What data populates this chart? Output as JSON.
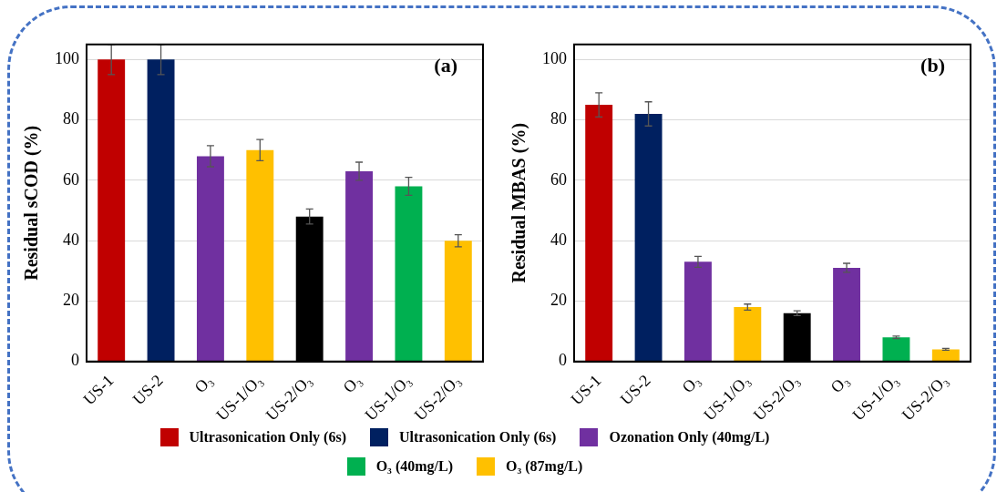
{
  "chart_data": [
    {
      "type": "bar",
      "ylabel": "Residual sCOD (%)",
      "annotations": [
        "(a)"
      ],
      "categories": [
        "US-1",
        "US-2",
        "O₃",
        "US-1/O₃",
        "US-2/O₃",
        "O₃",
        "US-1/O₃",
        "US-2/O₃"
      ],
      "ylim": [
        0,
        105
      ],
      "yticks": [
        0,
        20,
        40,
        60,
        80,
        100
      ],
      "grid": "y",
      "legend": "bottom",
      "series": [
        {
          "name": "Ultrasonication  Only (6s)",
          "color": "#c00000",
          "values": [
            100,
            null,
            null,
            null,
            null,
            null,
            null,
            null
          ],
          "errors": [
            5,
            null,
            null,
            null,
            null,
            null,
            null,
            null
          ]
        },
        {
          "name": "Ultrasonication  Only (6s)",
          "color": "#002060",
          "values": [
            null,
            100,
            null,
            null,
            null,
            null,
            null,
            null
          ],
          "errors": [
            null,
            5,
            null,
            null,
            null,
            null,
            null,
            null
          ]
        },
        {
          "name": "Ozonation Only (40mg/L)",
          "color": "#7030a0",
          "values": [
            null,
            null,
            68,
            null,
            null,
            63,
            null,
            null
          ],
          "errors": [
            null,
            null,
            3.5,
            null,
            null,
            3,
            null,
            null
          ]
        },
        {
          "name": "O₃ (40mg/L)",
          "color": "#00b050",
          "values": [
            null,
            null,
            null,
            null,
            null,
            null,
            58,
            null
          ],
          "errors": [
            null,
            null,
            null,
            null,
            null,
            null,
            3,
            null
          ]
        },
        {
          "name": "O₃ (87mg/L)",
          "color": "#ffc000",
          "values": [
            null,
            null,
            null,
            70,
            null,
            null,
            null,
            40
          ],
          "errors": [
            null,
            null,
            null,
            3.5,
            null,
            null,
            null,
            2
          ]
        },
        {
          "color": "#000000",
          "values": [
            null,
            null,
            null,
            null,
            48,
            null,
            null,
            null
          ],
          "errors": [
            null,
            null,
            null,
            null,
            2.5,
            null,
            null,
            null
          ]
        }
      ]
    },
    {
      "type": "bar",
      "ylabel": "Residual MBAS (%)",
      "annotations": [
        "(b)"
      ],
      "categories": [
        "US-1",
        "US-2",
        "O₃",
        "US-1/O₃",
        "US-2/O₃",
        "O₃",
        "US-1/O₃",
        "US-2/O₃"
      ],
      "ylim": [
        0,
        105
      ],
      "yticks": [
        0,
        20,
        40,
        60,
        80,
        100
      ],
      "grid": "y",
      "series": [
        {
          "color": "#c00000",
          "values": [
            85,
            null,
            null,
            null,
            null,
            null,
            null,
            null
          ],
          "errors": [
            4,
            null,
            null,
            null,
            null,
            null,
            null,
            null
          ]
        },
        {
          "color": "#002060",
          "values": [
            null,
            82,
            null,
            null,
            null,
            null,
            null,
            null
          ],
          "errors": [
            null,
            4,
            null,
            null,
            null,
            null,
            null,
            null
          ]
        },
        {
          "color": "#7030a0",
          "values": [
            null,
            null,
            33,
            null,
            null,
            31,
            null,
            null
          ],
          "errors": [
            null,
            null,
            1.8,
            null,
            null,
            1.5,
            null,
            null
          ]
        },
        {
          "color": "#00b050",
          "values": [
            null,
            null,
            null,
            null,
            null,
            null,
            8,
            null
          ],
          "errors": [
            null,
            null,
            null,
            null,
            null,
            null,
            0.4,
            null
          ]
        },
        {
          "color": "#ffc000",
          "values": [
            null,
            null,
            null,
            18,
            null,
            null,
            null,
            4
          ],
          "errors": [
            null,
            null,
            null,
            1,
            null,
            null,
            null,
            0.3
          ]
        },
        {
          "color": "#000000",
          "values": [
            null,
            null,
            null,
            null,
            16,
            null,
            null,
            null
          ],
          "errors": [
            null,
            null,
            null,
            null,
            0.8,
            null,
            null,
            null
          ]
        }
      ]
    }
  ]
}
